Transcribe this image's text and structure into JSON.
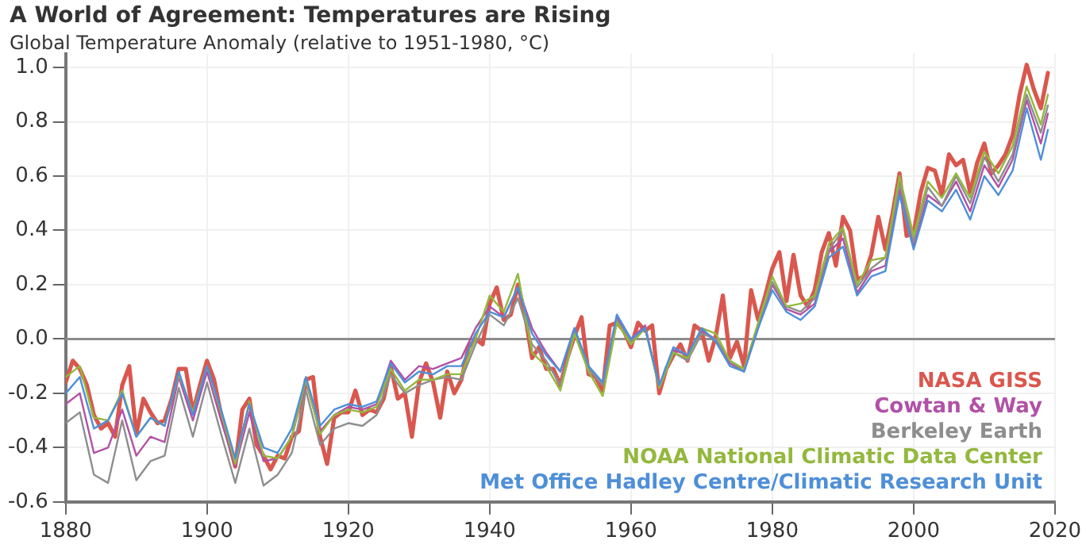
{
  "chart_data": {
    "type": "line",
    "title": "A World of Agreement: Temperatures are Rising",
    "subtitle": "Global Temperature Anomaly (relative to 1951-1980, °C)",
    "xlim": [
      1880,
      2020
    ],
    "xticks": [
      1880,
      1900,
      1920,
      1940,
      1960,
      1980,
      2000,
      2020
    ],
    "ylim": [
      -0.6,
      1.05
    ],
    "yticks": [
      {
        "value": -0.6,
        "label": "-0.6"
      },
      {
        "value": -0.4,
        "label": "-0.4"
      },
      {
        "value": -0.2,
        "label": "-0.2"
      },
      {
        "value": 0,
        "label": "0.0"
      },
      {
        "value": 0.2,
        "label": "0.2"
      },
      {
        "value": 0.4,
        "label": "0.4"
      },
      {
        "value": 0.6,
        "label": "0.6"
      },
      {
        "value": 0.8,
        "label": "0.8"
      },
      {
        "value": 1,
        "label": "1.0"
      }
    ],
    "grid": true,
    "legend": "bottom right",
    "marker": "none",
    "line_style": "solid",
    "ref_lines": [
      {
        "axis": "y",
        "value": 0,
        "color": "#8c8c8c"
      }
    ],
    "series": [
      {
        "name": "Met Office Hadley Centre/Climatic Research Unit",
        "color": "#4f8fd8",
        "x": [
          1880,
          1882,
          1884,
          1886,
          1888,
          1890,
          1892,
          1894,
          1896,
          1898,
          1900,
          1902,
          1904,
          1906,
          1908,
          1910,
          1912,
          1914,
          1916,
          1918,
          1920,
          1922,
          1924,
          1926,
          1928,
          1930,
          1932,
          1934,
          1936,
          1938,
          1940,
          1942,
          1944,
          1946,
          1948,
          1950,
          1952,
          1954,
          1956,
          1958,
          1960,
          1962,
          1964,
          1966,
          1968,
          1970,
          1972,
          1974,
          1976,
          1978,
          1980,
          1982,
          1984,
          1986,
          1988,
          1990,
          1992,
          1994,
          1996,
          1998,
          2000,
          2002,
          2004,
          2006,
          2008,
          2010,
          2012,
          2014,
          2016,
          2018,
          2019
        ],
        "values": [
          -0.2,
          -0.14,
          -0.33,
          -0.3,
          -0.2,
          -0.36,
          -0.29,
          -0.32,
          -0.12,
          -0.28,
          -0.1,
          -0.26,
          -0.44,
          -0.24,
          -0.4,
          -0.42,
          -0.33,
          -0.14,
          -0.32,
          -0.26,
          -0.24,
          -0.25,
          -0.23,
          -0.09,
          -0.16,
          -0.12,
          -0.13,
          -0.1,
          -0.1,
          0.02,
          0.1,
          0.08,
          0.19,
          0.02,
          -0.06,
          -0.12,
          0.04,
          -0.1,
          -0.16,
          0.09,
          0.0,
          0.04,
          -0.17,
          -0.03,
          -0.06,
          0.04,
          -0.01,
          -0.1,
          -0.12,
          0.04,
          0.18,
          0.1,
          0.07,
          0.12,
          0.3,
          0.34,
          0.16,
          0.23,
          0.25,
          0.53,
          0.33,
          0.51,
          0.47,
          0.55,
          0.44,
          0.6,
          0.53,
          0.62,
          0.85,
          0.66,
          0.77
        ]
      },
      {
        "name": "NOAA National Climatic Data Center",
        "color": "#93b83e",
        "x": [
          1880,
          1882,
          1884,
          1886,
          1888,
          1890,
          1892,
          1894,
          1896,
          1898,
          1900,
          1902,
          1904,
          1906,
          1908,
          1910,
          1912,
          1914,
          1916,
          1918,
          1920,
          1922,
          1924,
          1926,
          1928,
          1930,
          1932,
          1934,
          1936,
          1938,
          1940,
          1942,
          1944,
          1946,
          1948,
          1950,
          1952,
          1954,
          1956,
          1958,
          1960,
          1962,
          1964,
          1966,
          1968,
          1970,
          1972,
          1974,
          1976,
          1978,
          1980,
          1982,
          1984,
          1986,
          1988,
          1990,
          1992,
          1994,
          1996,
          1998,
          2000,
          2002,
          2004,
          2006,
          2008,
          2010,
          2012,
          2014,
          2016,
          2018,
          2019
        ],
        "values": [
          -0.14,
          -0.1,
          -0.29,
          -0.3,
          -0.19,
          -0.36,
          -0.29,
          -0.32,
          -0.13,
          -0.27,
          -0.1,
          -0.27,
          -0.46,
          -0.23,
          -0.43,
          -0.44,
          -0.36,
          -0.15,
          -0.35,
          -0.28,
          -0.26,
          -0.27,
          -0.25,
          -0.11,
          -0.19,
          -0.15,
          -0.15,
          -0.13,
          -0.13,
          0.0,
          0.16,
          0.1,
          0.24,
          -0.05,
          -0.1,
          -0.19,
          0.02,
          -0.12,
          -0.21,
          0.06,
          -0.02,
          0.04,
          -0.18,
          -0.05,
          -0.07,
          0.04,
          0.02,
          -0.08,
          -0.11,
          0.06,
          0.23,
          0.12,
          0.13,
          0.16,
          0.35,
          0.41,
          0.2,
          0.29,
          0.3,
          0.6,
          0.38,
          0.58,
          0.52,
          0.61,
          0.52,
          0.69,
          0.61,
          0.71,
          0.93,
          0.79,
          0.9
        ]
      },
      {
        "name": "Berkeley Earth",
        "color": "#8e8e8e",
        "x": [
          1880,
          1882,
          1884,
          1886,
          1888,
          1890,
          1892,
          1894,
          1896,
          1898,
          1900,
          1902,
          1904,
          1906,
          1908,
          1910,
          1912,
          1914,
          1916,
          1918,
          1920,
          1922,
          1924,
          1926,
          1928,
          1930,
          1932,
          1934,
          1936,
          1938,
          1940,
          1942,
          1944,
          1946,
          1948,
          1950,
          1952,
          1954,
          1956,
          1958,
          1960,
          1962,
          1964,
          1966,
          1968,
          1970,
          1972,
          1974,
          1976,
          1978,
          1980,
          1982,
          1984,
          1986,
          1988,
          1990,
          1992,
          1994,
          1996,
          1998,
          2000,
          2002,
          2004,
          2006,
          2008,
          2010,
          2012,
          2014,
          2016,
          2018,
          2019
        ],
        "values": [
          -0.31,
          -0.27,
          -0.5,
          -0.53,
          -0.3,
          -0.52,
          -0.45,
          -0.43,
          -0.18,
          -0.36,
          -0.16,
          -0.35,
          -0.53,
          -0.33,
          -0.54,
          -0.5,
          -0.42,
          -0.19,
          -0.39,
          -0.33,
          -0.31,
          -0.32,
          -0.28,
          -0.13,
          -0.2,
          -0.17,
          -0.15,
          -0.14,
          -0.15,
          -0.02,
          0.09,
          0.05,
          0.15,
          -0.02,
          -0.08,
          -0.17,
          0.02,
          -0.11,
          -0.17,
          0.07,
          -0.01,
          0.04,
          -0.18,
          -0.05,
          -0.08,
          0.02,
          0.0,
          -0.08,
          -0.12,
          0.05,
          0.21,
          0.12,
          0.1,
          0.15,
          0.33,
          0.4,
          0.19,
          0.26,
          0.3,
          0.57,
          0.36,
          0.56,
          0.49,
          0.6,
          0.5,
          0.67,
          0.58,
          0.68,
          0.9,
          0.76,
          0.86
        ]
      },
      {
        "name": "Cowtan & Way",
        "color": "#b052a6",
        "x": [
          1880,
          1882,
          1884,
          1886,
          1888,
          1890,
          1892,
          1894,
          1896,
          1898,
          1900,
          1902,
          1904,
          1906,
          1908,
          1910,
          1912,
          1914,
          1916,
          1918,
          1920,
          1922,
          1924,
          1926,
          1928,
          1930,
          1932,
          1934,
          1936,
          1938,
          1940,
          1942,
          1944,
          1946,
          1948,
          1950,
          1952,
          1954,
          1956,
          1958,
          1960,
          1962,
          1964,
          1966,
          1968,
          1970,
          1972,
          1974,
          1976,
          1978,
          1980,
          1982,
          1984,
          1986,
          1988,
          1990,
          1992,
          1994,
          1996,
          1998,
          2000,
          2002,
          2004,
          2006,
          2008,
          2010,
          2012,
          2014,
          2016,
          2018,
          2019
        ],
        "values": [
          -0.24,
          -0.2,
          -0.42,
          -0.4,
          -0.26,
          -0.43,
          -0.36,
          -0.38,
          -0.14,
          -0.3,
          -0.12,
          -0.3,
          -0.47,
          -0.27,
          -0.45,
          -0.44,
          -0.36,
          -0.16,
          -0.34,
          -0.28,
          -0.25,
          -0.26,
          -0.24,
          -0.08,
          -0.15,
          -0.1,
          -0.11,
          -0.09,
          -0.07,
          0.04,
          0.12,
          0.08,
          0.19,
          0.04,
          -0.05,
          -0.12,
          0.04,
          -0.11,
          -0.17,
          0.08,
          0.0,
          0.05,
          -0.18,
          -0.04,
          -0.06,
          0.03,
          0.0,
          -0.09,
          -0.12,
          0.04,
          0.2,
          0.11,
          0.09,
          0.13,
          0.32,
          0.37,
          0.17,
          0.25,
          0.27,
          0.55,
          0.34,
          0.53,
          0.49,
          0.58,
          0.47,
          0.64,
          0.56,
          0.66,
          0.88,
          0.72,
          0.83
        ]
      },
      {
        "name": "NASA GISS",
        "color": "#d9574e",
        "x": [
          1880,
          1881,
          1882,
          1883,
          1884,
          1885,
          1886,
          1887,
          1888,
          1889,
          1890,
          1891,
          1892,
          1893,
          1894,
          1895,
          1896,
          1897,
          1898,
          1899,
          1900,
          1901,
          1902,
          1903,
          1904,
          1905,
          1906,
          1907,
          1908,
          1909,
          1910,
          1911,
          1912,
          1913,
          1914,
          1915,
          1916,
          1917,
          1918,
          1919,
          1920,
          1921,
          1922,
          1923,
          1924,
          1925,
          1926,
          1927,
          1928,
          1929,
          1930,
          1931,
          1932,
          1933,
          1934,
          1935,
          1936,
          1937,
          1938,
          1939,
          1940,
          1941,
          1942,
          1943,
          1944,
          1945,
          1946,
          1947,
          1948,
          1949,
          1950,
          1951,
          1952,
          1953,
          1954,
          1955,
          1956,
          1957,
          1958,
          1959,
          1960,
          1961,
          1962,
          1963,
          1964,
          1965,
          1966,
          1967,
          1968,
          1969,
          1970,
          1971,
          1972,
          1973,
          1974,
          1975,
          1976,
          1977,
          1978,
          1979,
          1980,
          1981,
          1982,
          1983,
          1984,
          1985,
          1986,
          1987,
          1988,
          1989,
          1990,
          1991,
          1992,
          1993,
          1994,
          1995,
          1996,
          1997,
          1998,
          1999,
          2000,
          2001,
          2002,
          2003,
          2004,
          2005,
          2006,
          2007,
          2008,
          2009,
          2010,
          2011,
          2012,
          2013,
          2014,
          2015,
          2016,
          2017,
          2018,
          2019
        ],
        "values": [
          -0.16,
          -0.08,
          -0.11,
          -0.17,
          -0.28,
          -0.33,
          -0.31,
          -0.36,
          -0.17,
          -0.1,
          -0.35,
          -0.22,
          -0.27,
          -0.31,
          -0.3,
          -0.22,
          -0.11,
          -0.11,
          -0.27,
          -0.17,
          -0.08,
          -0.15,
          -0.28,
          -0.37,
          -0.47,
          -0.26,
          -0.22,
          -0.39,
          -0.43,
          -0.48,
          -0.43,
          -0.44,
          -0.36,
          -0.34,
          -0.15,
          -0.14,
          -0.36,
          -0.46,
          -0.29,
          -0.27,
          -0.27,
          -0.19,
          -0.28,
          -0.26,
          -0.27,
          -0.22,
          -0.1,
          -0.22,
          -0.2,
          -0.36,
          -0.16,
          -0.09,
          -0.16,
          -0.29,
          -0.12,
          -0.2,
          -0.15,
          -0.03,
          0.0,
          -0.02,
          0.13,
          0.19,
          0.07,
          0.09,
          0.2,
          0.09,
          -0.07,
          -0.03,
          -0.11,
          -0.11,
          -0.17,
          -0.07,
          0.01,
          0.08,
          -0.13,
          -0.14,
          -0.19,
          0.05,
          0.06,
          0.03,
          -0.03,
          0.06,
          0.03,
          0.05,
          -0.2,
          -0.11,
          -0.06,
          -0.02,
          -0.08,
          0.05,
          0.03,
          -0.08,
          0.01,
          0.16,
          -0.07,
          -0.01,
          -0.1,
          0.18,
          0.07,
          0.16,
          0.26,
          0.32,
          0.14,
          0.31,
          0.16,
          0.12,
          0.18,
          0.32,
          0.39,
          0.27,
          0.45,
          0.4,
          0.22,
          0.23,
          0.31,
          0.45,
          0.33,
          0.46,
          0.61,
          0.38,
          0.39,
          0.54,
          0.63,
          0.62,
          0.53,
          0.68,
          0.64,
          0.66,
          0.54,
          0.65,
          0.72,
          0.61,
          0.64,
          0.68,
          0.75,
          0.9,
          1.01,
          0.92,
          0.85,
          0.98
        ]
      }
    ]
  }
}
